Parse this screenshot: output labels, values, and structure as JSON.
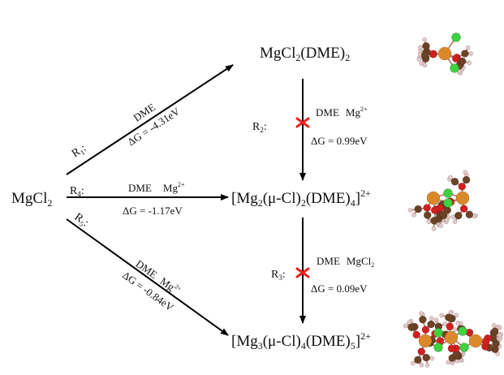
{
  "nodes": {
    "start": {
      "base": "MgCl",
      "sub": "2"
    },
    "top": {
      "main": "MgCl",
      "sub1": "2",
      "mid": "(DME)",
      "sub2": "2"
    },
    "middle": {
      "open": "[Mg",
      "s1": "2",
      "p1": "(μ-Cl)",
      "s2": "2",
      "p2": "(DME)",
      "s3": "4",
      "close": "]",
      "sup": "2+"
    },
    "bottom": {
      "open": "[Mg",
      "s1": "3",
      "p1": "(μ-Cl)",
      "s2": "4",
      "p2": "(DME)",
      "s3": "5",
      "close": "]",
      "sup": "2+"
    }
  },
  "reactions": {
    "r1": {
      "label": "R",
      "sub": "1",
      "colon": ":",
      "reagent": "DME",
      "dg": "ΔG = -4.31eV"
    },
    "r4": {
      "label": "R",
      "sub": "4",
      "colon": ":",
      "reagent1": "DME",
      "reagent2": "Mg",
      "sup": "2+",
      "dg": "ΔG = -1.17eV"
    },
    "r5": {
      "label": "R",
      "sub": "5",
      "colon": ":",
      "reagent1": "DME",
      "reagent2": "Mg",
      "sup": "2+",
      "dg": "ΔG = -0.84eV"
    },
    "r2": {
      "label": "R",
      "sub": "2",
      "colon": ":",
      "reagent1": "DME",
      "reagent2": "Mg",
      "sup": "2+",
      "dg": "ΔG = 0.99eV",
      "blocked": true
    },
    "r3": {
      "label": "R",
      "sub": "3",
      "colon": ":",
      "reagent1": "DME",
      "reagent2": "MgCl",
      "sub2": "2",
      "dg": "ΔG = 0.09eV",
      "blocked": true
    }
  },
  "molecules": [
    {
      "name": "mgcl2-dme2-model",
      "metal_count": 1,
      "chloride_count": 2
    },
    {
      "name": "mg2-cl2-dme4-model",
      "metal_count": 2,
      "chloride_count": 2
    },
    {
      "name": "mg3-cl4-dme5-model",
      "metal_count": 3,
      "chloride_count": 4
    }
  ],
  "colors": {
    "arrow": "#000000",
    "block_mark": "#e8231e",
    "magnesium": "#d9892a",
    "chlorine": "#3fd13f",
    "oxygen": "#d11f1f",
    "carbon": "#6b4226",
    "hydrogen": "#e8c9c9"
  }
}
